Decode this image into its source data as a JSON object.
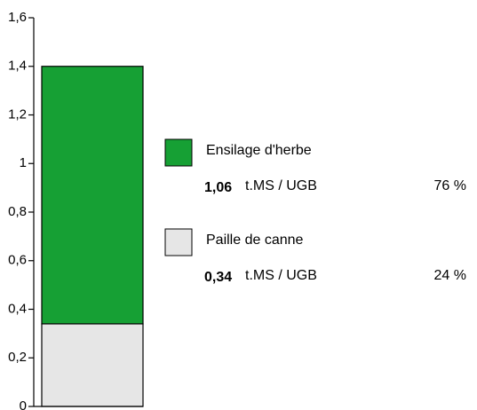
{
  "chart_data": {
    "type": "stacked_bar",
    "ylim": [
      0,
      1.6
    ],
    "yticks": [
      0,
      {
        "value": 0.2,
        "label": "0,2"
      },
      {
        "value": 0.4,
        "label": "0,4"
      },
      {
        "value": 0.6,
        "label": "0,6"
      },
      {
        "value": 0.8,
        "label": "0,8"
      },
      1,
      {
        "value": 1.2,
        "label": "1,2"
      },
      {
        "value": 1.4,
        "label": "1,4"
      },
      {
        "value": 1.6,
        "label": "1,6"
      }
    ],
    "unit": "t.MS / UGB",
    "series": [
      {
        "name": "Ensilage d'herbe",
        "color": "#16a034",
        "values": [
          1.06
        ],
        "value_labels": [
          "1,06"
        ],
        "share": 76,
        "share_label": "76 %"
      },
      {
        "name": "Paille de canne",
        "color": "#e6e6e6",
        "values": [
          0.34
        ],
        "value_labels": [
          "0,34"
        ],
        "share": 24,
        "share_label": "24 %"
      }
    ]
  }
}
